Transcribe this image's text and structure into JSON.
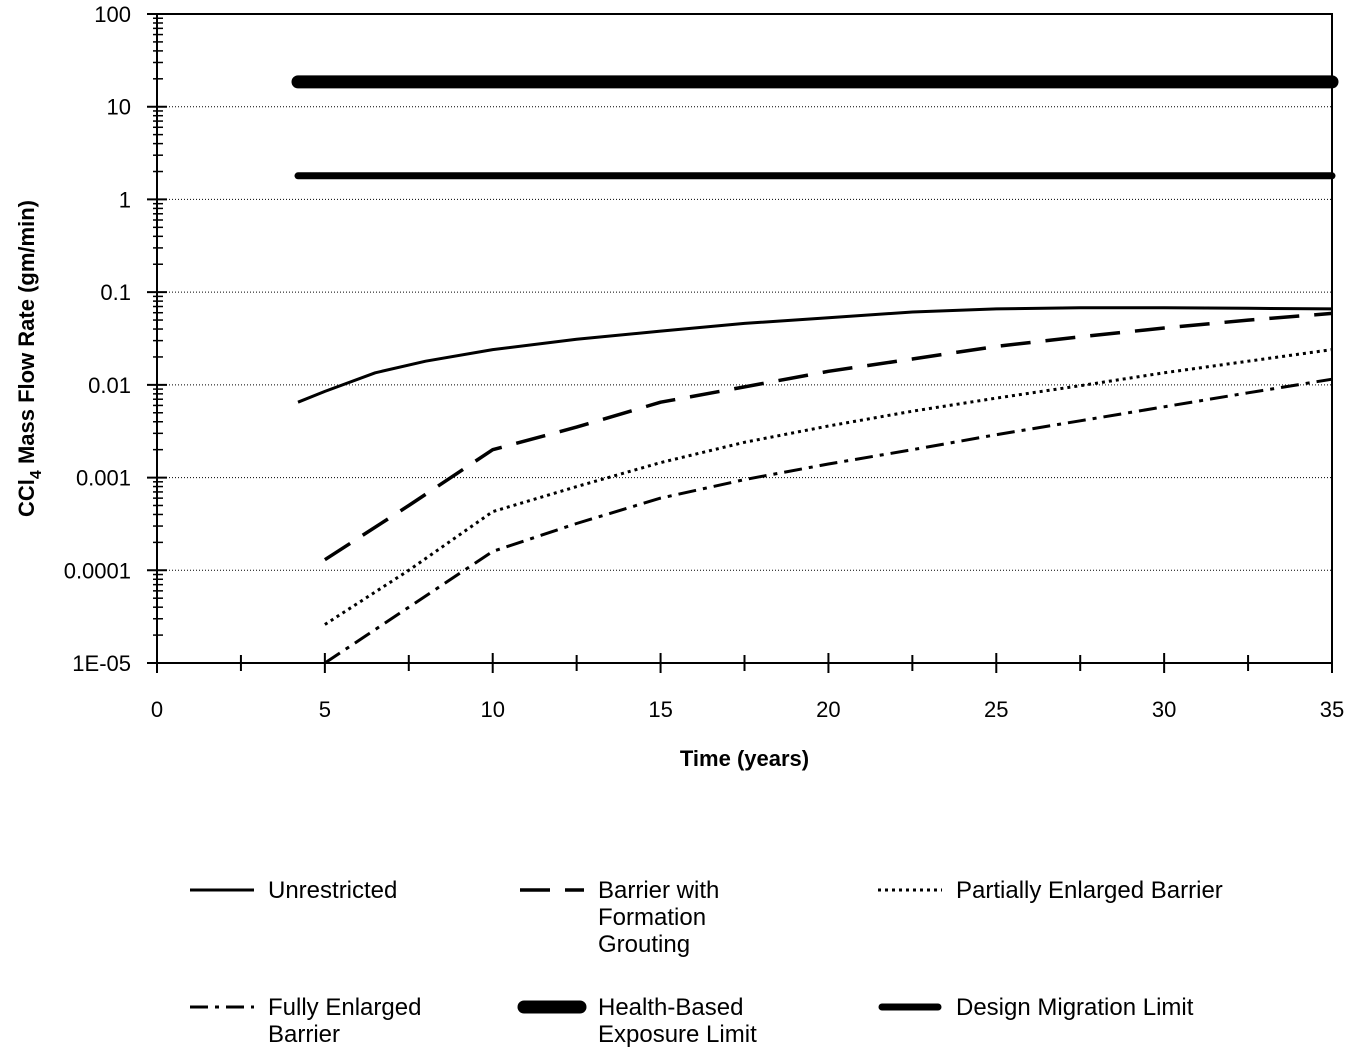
{
  "chart_data": {
    "type": "line",
    "title": "",
    "xlabel": "Time (years)",
    "ylabel_prefix": "CCl",
    "ylabel_sub": "4",
    "ylabel_suffix": " Mass Flow Rate (gm/min)",
    "xlim": [
      0,
      35
    ],
    "ylim": [
      1e-05,
      100
    ],
    "y_scale": "log",
    "grid": "horizontal dotted at decades",
    "legend_position": "bottom",
    "x_ticks": [
      "0",
      "5",
      "10",
      "15",
      "20",
      "25",
      "30",
      "35"
    ],
    "x_tick_values": [
      0,
      5,
      10,
      15,
      20,
      25,
      30,
      35
    ],
    "y_ticks": [
      "100",
      "10",
      "1",
      "0.1",
      "0.01",
      "0.001",
      "0.0001",
      "1E-05"
    ],
    "y_tick_values": [
      100,
      10,
      1,
      0.1,
      0.01,
      0.001,
      0.0001,
      1e-05
    ],
    "series": [
      {
        "name": "Unrestricted",
        "style": "solid",
        "color": "#000000",
        "legend_lines": [
          "Unrestricted"
        ],
        "x": [
          4.2,
          5,
          6.5,
          8,
          10,
          12.5,
          15,
          17.5,
          20,
          22.5,
          25,
          27.5,
          30,
          32.5,
          35
        ],
        "y": [
          0.0065,
          0.0085,
          0.0135,
          0.018,
          0.024,
          0.031,
          0.038,
          0.046,
          0.053,
          0.061,
          0.066,
          0.068,
          0.068,
          0.067,
          0.066
        ]
      },
      {
        "name": "Barrier with Formation Grouting",
        "style": "long-dash",
        "color": "#000000",
        "legend_lines": [
          "Barrier with",
          "Formation",
          "Grouting"
        ],
        "x": [
          5,
          7.5,
          10,
          12.5,
          15,
          17.5,
          20,
          22.5,
          25,
          27.5,
          30,
          32.5,
          35
        ],
        "y": [
          0.00013,
          0.0005,
          0.002,
          0.0035,
          0.0065,
          0.0095,
          0.014,
          0.019,
          0.026,
          0.033,
          0.041,
          0.05,
          0.059
        ]
      },
      {
        "name": "Partially Enlarged Barrier",
        "style": "dotted",
        "color": "#000000",
        "legend_lines": [
          "Partially Enlarged Barrier"
        ],
        "x": [
          5,
          7.5,
          10,
          12.5,
          15,
          17.5,
          20,
          22.5,
          25,
          27.5,
          30,
          32.5,
          35
        ],
        "y": [
          2.6e-05,
          0.0001,
          0.00043,
          0.0008,
          0.00145,
          0.0024,
          0.0036,
          0.0052,
          0.0072,
          0.0098,
          0.0135,
          0.018,
          0.024
        ]
      },
      {
        "name": "Fully Enlarged Barrier",
        "style": "dash-dot",
        "color": "#000000",
        "legend_lines": [
          "Fully Enlarged",
          "Barrier"
        ],
        "x": [
          5,
          7.5,
          10,
          12.5,
          15,
          17.5,
          20,
          22.5,
          25,
          27.5,
          30,
          32.5,
          35
        ],
        "y": [
          1e-05,
          4e-05,
          0.00016,
          0.00032,
          0.0006,
          0.00095,
          0.0014,
          0.002,
          0.0029,
          0.0041,
          0.0058,
          0.0082,
          0.0115
        ]
      },
      {
        "name": "Health-Based Exposure Limit",
        "style": "extra-thick-solid",
        "color": "#000000",
        "legend_lines": [
          "Health-Based",
          "Exposure Limit"
        ],
        "x": [
          4.2,
          35
        ],
        "y": [
          18.5,
          18.5
        ]
      },
      {
        "name": "Design Migration Limit",
        "style": "thick-solid",
        "color": "#000000",
        "legend_lines": [
          "Design Migration Limit"
        ],
        "x": [
          4.2,
          35
        ],
        "y": [
          1.8,
          1.8
        ]
      }
    ]
  }
}
